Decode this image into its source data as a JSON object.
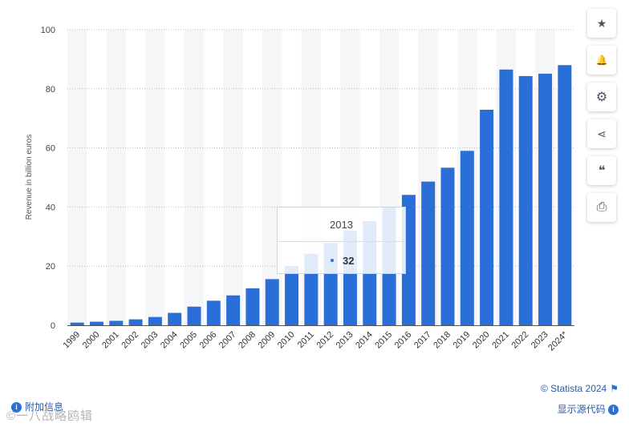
{
  "chart_data": {
    "type": "bar",
    "title": "",
    "xlabel": "",
    "ylabel": "Revenue in billion euros",
    "ylim": [
      0,
      100
    ],
    "yticks": [
      0,
      20,
      40,
      60,
      80,
      100
    ],
    "grid": true,
    "categories": [
      "1999",
      "2000",
      "2001",
      "2002",
      "2003",
      "2004",
      "2005",
      "2006",
      "2007",
      "2008",
      "2009",
      "2010",
      "2011",
      "2012",
      "2013",
      "2014",
      "2015",
      "2016",
      "2017",
      "2018",
      "2019",
      "2020",
      "2021",
      "2022",
      "2023",
      "2024*"
    ],
    "values": [
      0.9,
      1.2,
      1.5,
      2.0,
      2.8,
      4.2,
      6.3,
      8.3,
      10.1,
      12.5,
      15.6,
      20.1,
      24.2,
      27.8,
      32,
      35.2,
      40.0,
      44.1,
      48.6,
      53.3,
      59.0,
      72.9,
      86.5,
      84.3,
      85.1,
      88.0
    ],
    "bar_color": "#2a6fd8",
    "tooltip": {
      "category": "2013",
      "value": "32"
    }
  },
  "sidebar": {
    "buttons": [
      {
        "name": "favorite",
        "icon": "star-icon",
        "glyph": "★"
      },
      {
        "name": "notify",
        "icon": "bell-icon",
        "glyph": "🔔"
      },
      {
        "name": "settings",
        "icon": "gear-icon",
        "glyph": "⚙"
      },
      {
        "name": "share",
        "icon": "share-icon",
        "glyph": "⋖"
      },
      {
        "name": "cite",
        "icon": "quote-icon",
        "glyph": "❝"
      },
      {
        "name": "print",
        "icon": "print-icon",
        "glyph": "⎙"
      }
    ]
  },
  "footer": {
    "copyright": "© Statista 2024",
    "source_link": "显示源代码",
    "additional_info": "附加信息",
    "watermark": "©一八战略鸥辑"
  },
  "colors": {
    "accent": "#2a6fd8",
    "link": "#2a5aa8"
  }
}
